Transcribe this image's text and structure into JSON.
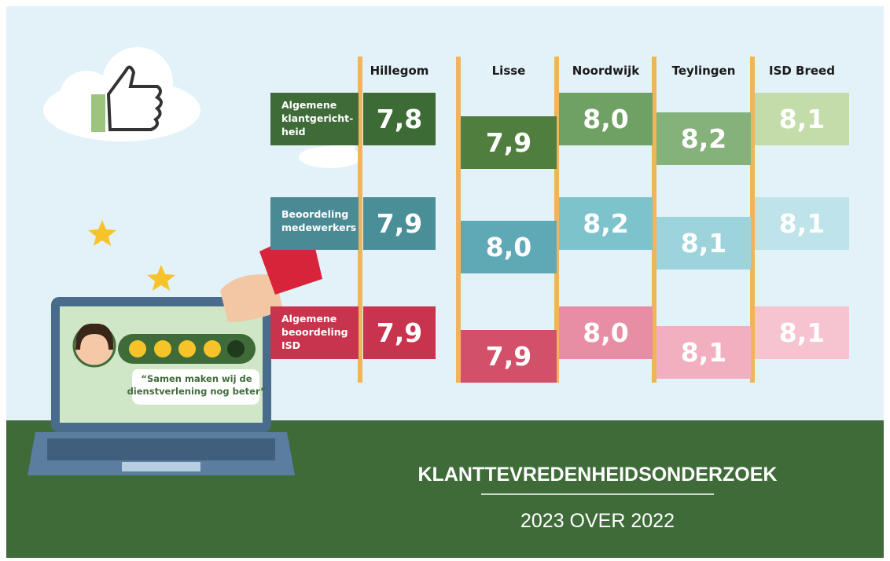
{
  "columns": [
    "Hillegom",
    "Lisse",
    "Noordwijk",
    "Teylingen",
    "ISD Breed"
  ],
  "rows": [
    {
      "label": [
        "Algemene",
        "klantgericht-",
        "heid"
      ],
      "values": [
        "7,8",
        "7,9",
        "8,0",
        "8,2",
        "8,1"
      ]
    },
    {
      "label": [
        "Beoordeling",
        "medewerkers"
      ],
      "values": [
        "7,9",
        "8,0",
        "8,2",
        "8,1",
        "8,1"
      ]
    },
    {
      "label": [
        "Algemene",
        "beoordeling",
        "ISD"
      ],
      "values": [
        "7,9",
        "7,9",
        "8,0",
        "8,1",
        "8,1"
      ]
    }
  ],
  "quote": [
    "“Samen maken wij de",
    "dienstverlening nog beter”"
  ],
  "title": "KLANTTEVREDENHEIDSONDERZOEK",
  "subtitle": "2023 OVER 2022"
}
